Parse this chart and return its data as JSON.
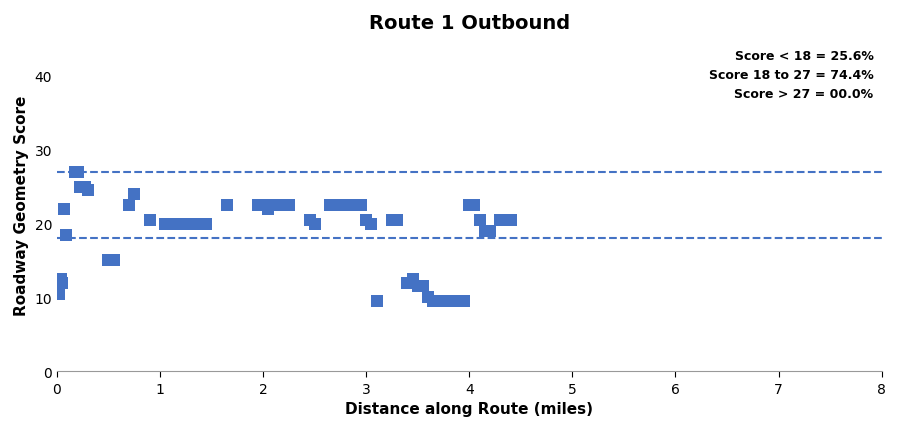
{
  "title": "Route 1 Outbound",
  "xlabel": "Distance along Route (miles)",
  "ylabel": "Roadway Geometry Score",
  "xlim": [
    0,
    8
  ],
  "ylim": [
    0,
    45
  ],
  "yticks": [
    0,
    10,
    20,
    30,
    40
  ],
  "xticks": [
    0,
    1,
    2,
    3,
    4,
    5,
    6,
    7,
    8
  ],
  "hline1": 18,
  "hline2": 27,
  "line_color": "#4472c4",
  "annotation": "Score < 18 = 25.6%\nScore 18 to 27 = 74.4%\nScore > 27 = 00.0%",
  "scatter_color": "#4472c4",
  "scatter_points": [
    [
      0.01,
      10.5
    ],
    [
      0.02,
      10.5
    ],
    [
      0.04,
      12.5
    ],
    [
      0.05,
      12.0
    ],
    [
      0.07,
      22.0
    ],
    [
      0.09,
      18.5
    ],
    [
      0.18,
      27.0
    ],
    [
      0.2,
      27.0
    ],
    [
      0.22,
      25.0
    ],
    [
      0.27,
      25.0
    ],
    [
      0.3,
      24.5
    ],
    [
      0.5,
      15.0
    ],
    [
      0.55,
      15.0
    ],
    [
      0.7,
      22.5
    ],
    [
      0.75,
      24.0
    ],
    [
      0.9,
      20.5
    ],
    [
      1.05,
      20.0
    ],
    [
      1.1,
      20.0
    ],
    [
      1.15,
      20.0
    ],
    [
      1.2,
      20.0
    ],
    [
      1.25,
      20.0
    ],
    [
      1.3,
      20.0
    ],
    [
      1.35,
      20.0
    ],
    [
      1.4,
      20.0
    ],
    [
      1.45,
      20.0
    ],
    [
      1.65,
      22.5
    ],
    [
      1.95,
      22.5
    ],
    [
      2.0,
      22.5
    ],
    [
      2.05,
      22.0
    ],
    [
      2.1,
      22.5
    ],
    [
      2.15,
      22.5
    ],
    [
      2.2,
      22.5
    ],
    [
      2.25,
      22.5
    ],
    [
      2.45,
      20.5
    ],
    [
      2.5,
      20.0
    ],
    [
      2.65,
      22.5
    ],
    [
      2.7,
      22.5
    ],
    [
      2.75,
      22.5
    ],
    [
      2.8,
      22.5
    ],
    [
      2.85,
      22.5
    ],
    [
      2.9,
      22.5
    ],
    [
      2.95,
      22.5
    ],
    [
      3.0,
      20.5
    ],
    [
      3.05,
      20.0
    ],
    [
      3.1,
      9.5
    ],
    [
      3.25,
      20.5
    ],
    [
      3.3,
      20.5
    ],
    [
      3.4,
      12.0
    ],
    [
      3.45,
      12.5
    ],
    [
      3.5,
      11.5
    ],
    [
      3.55,
      11.5
    ],
    [
      3.6,
      10.0
    ],
    [
      3.65,
      9.5
    ],
    [
      3.7,
      9.5
    ],
    [
      3.75,
      9.5
    ],
    [
      3.8,
      9.5
    ],
    [
      3.85,
      9.5
    ],
    [
      3.9,
      9.5
    ],
    [
      3.95,
      9.5
    ],
    [
      4.0,
      22.5
    ],
    [
      4.05,
      22.5
    ],
    [
      4.1,
      20.5
    ],
    [
      4.15,
      19.0
    ],
    [
      4.2,
      19.0
    ],
    [
      4.3,
      20.5
    ],
    [
      4.4,
      20.5
    ]
  ],
  "marker_size": 9,
  "marker_style": "s",
  "fig_width": 9.0,
  "fig_height": 4.31,
  "title_fontsize": 14,
  "label_fontsize": 11,
  "tick_fontsize": 10,
  "annot_fontsize": 9
}
